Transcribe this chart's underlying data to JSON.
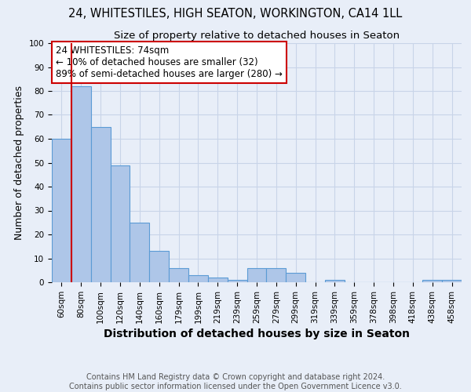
{
  "title": "24, WHITESTILES, HIGH SEATON, WORKINGTON, CA14 1LL",
  "subtitle": "Size of property relative to detached houses in Seaton",
  "xlabel": "Distribution of detached houses by size in Seaton",
  "ylabel": "Number of detached properties",
  "bar_labels": [
    "60sqm",
    "80sqm",
    "100sqm",
    "120sqm",
    "140sqm",
    "160sqm",
    "179sqm",
    "199sqm",
    "219sqm",
    "239sqm",
    "259sqm",
    "279sqm",
    "299sqm",
    "319sqm",
    "339sqm",
    "359sqm",
    "378sqm",
    "398sqm",
    "418sqm",
    "438sqm",
    "458sqm"
  ],
  "bar_values": [
    60,
    82,
    65,
    49,
    25,
    13,
    6,
    3,
    2,
    1,
    6,
    6,
    4,
    0,
    1,
    0,
    0,
    0,
    0,
    1,
    1
  ],
  "bar_color": "#aec6e8",
  "bar_edge_color": "#5b9bd5",
  "bar_edge_width": 0.8,
  "grid_color": "#c8d4e8",
  "background_color": "#e8eef8",
  "vline_color": "#cc0000",
  "annotation_text": "24 WHITESTILES: 74sqm\n← 10% of detached houses are smaller (32)\n89% of semi-detached houses are larger (280) →",
  "annotation_box_color": "white",
  "annotation_box_edge_color": "#cc0000",
  "ylim": [
    0,
    100
  ],
  "footnote": "Contains HM Land Registry data © Crown copyright and database right 2024.\nContains public sector information licensed under the Open Government Licence v3.0.",
  "title_fontsize": 10.5,
  "subtitle_fontsize": 9.5,
  "xlabel_fontsize": 10,
  "ylabel_fontsize": 9,
  "tick_fontsize": 7.5,
  "annotation_fontsize": 8.5,
  "footnote_fontsize": 7
}
